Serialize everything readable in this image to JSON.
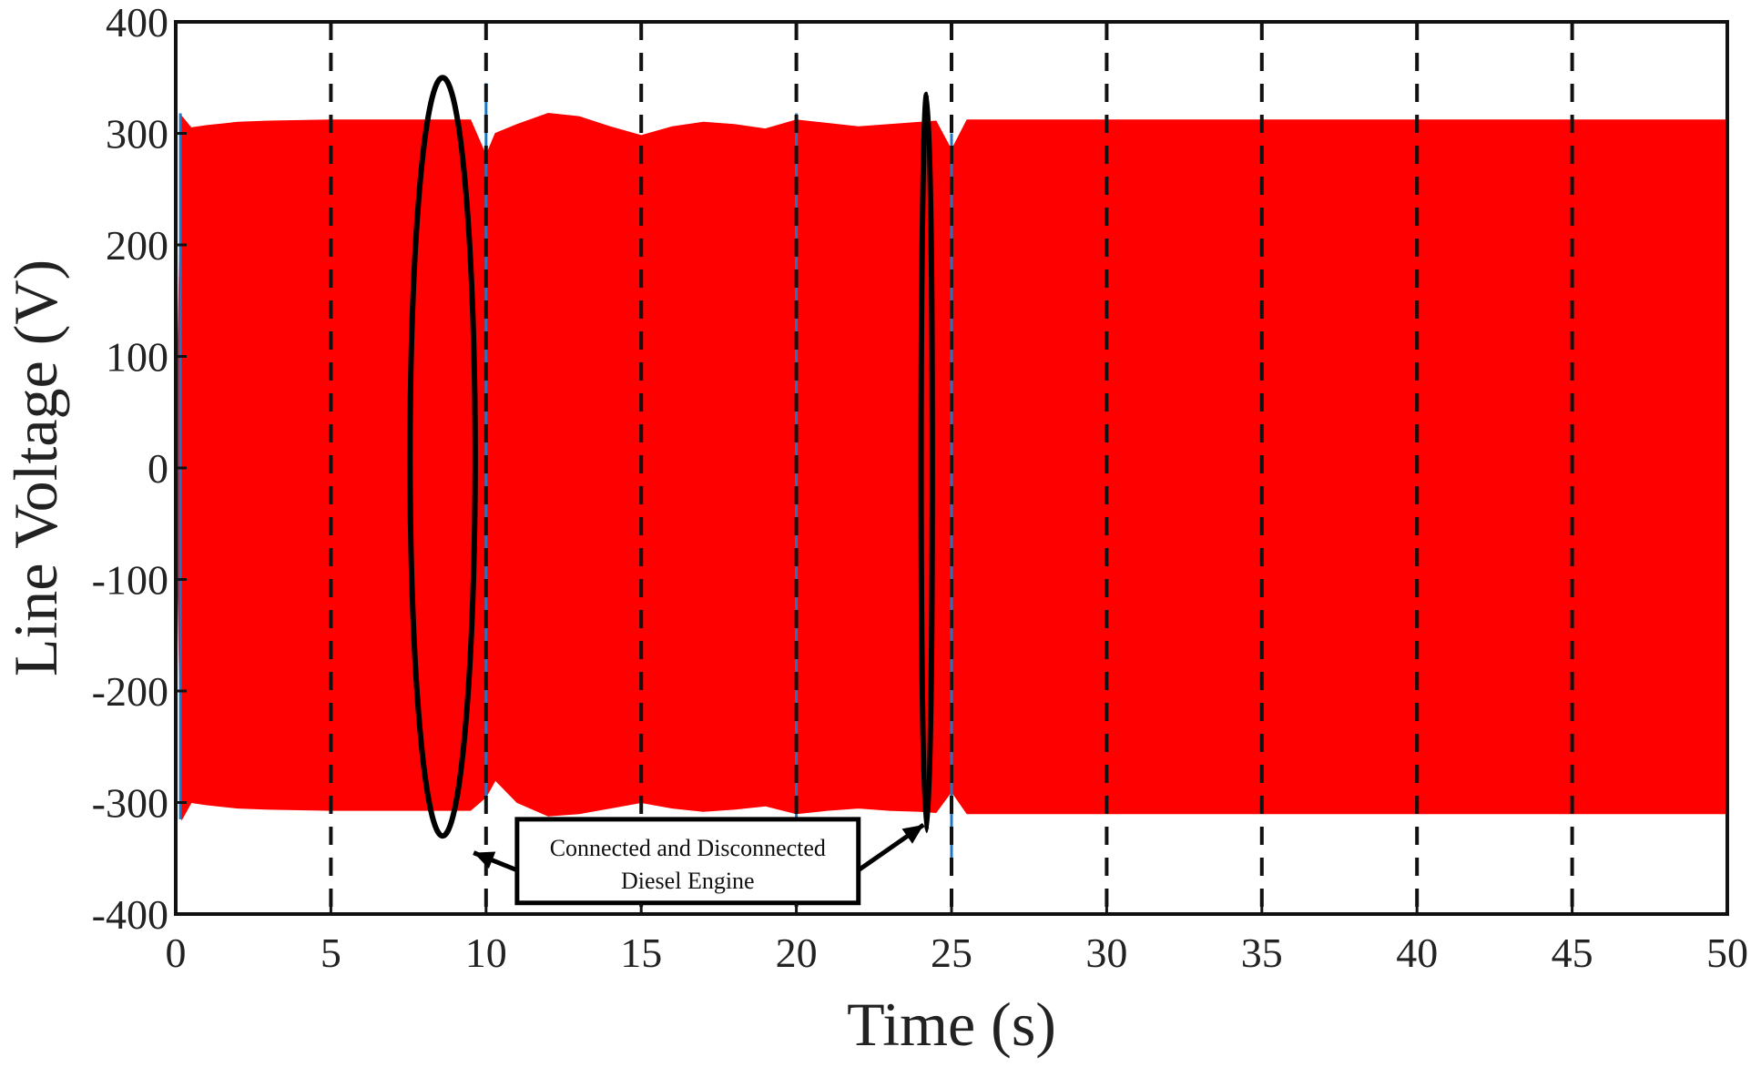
{
  "chart_data": {
    "type": "area",
    "title": "",
    "xlabel": "Time (s)",
    "ylabel": "Line Voltage (V)",
    "xlim": [
      0,
      50
    ],
    "ylim": [
      -400,
      400
    ],
    "xticks": [
      0,
      5,
      10,
      15,
      20,
      25,
      30,
      35,
      40,
      45,
      50
    ],
    "yticks": [
      -400,
      -300,
      -200,
      -100,
      0,
      100,
      200,
      300,
      400
    ],
    "xtick_labels": [
      "0",
      "5",
      "10",
      "15",
      "20",
      "25",
      "30",
      "35",
      "40",
      "45",
      "50"
    ],
    "ytick_labels": [
      "-400",
      "-300",
      "-200",
      "-100",
      "0",
      "100",
      "200",
      "300",
      "400"
    ],
    "grid": "vertical dashed",
    "series": [
      {
        "color": "#ff0000",
        "envelope_x": [
          0,
          0.2,
          0.5,
          1,
          2,
          3,
          5,
          8,
          9.5,
          10,
          10.3,
          11,
          12,
          13,
          14,
          15,
          16,
          17,
          18,
          19,
          20,
          21,
          22,
          23,
          24,
          24.5,
          25,
          25.5,
          26,
          30,
          35,
          40,
          45,
          50
        ],
        "envelope_upper": [
          0,
          315,
          305,
          307,
          310,
          311,
          312,
          312,
          312,
          280,
          300,
          308,
          318,
          315,
          306,
          298,
          306,
          310,
          308,
          304,
          312,
          309,
          306,
          308,
          310,
          311,
          285,
          312,
          312,
          312,
          312,
          312,
          312,
          312
        ],
        "envelope_lower": [
          0,
          -315,
          -300,
          -302,
          -305,
          -306,
          -307,
          -307,
          -307,
          -295,
          -280,
          -300,
          -312,
          -310,
          -305,
          -300,
          -305,
          -308,
          -306,
          -303,
          -310,
          -307,
          -305,
          -307,
          -308,
          -309,
          -290,
          -310,
          -310,
          -310,
          -310,
          -310,
          -310,
          -310
        ]
      }
    ],
    "annotations": [
      {
        "text_lines": [
          "Connected and Disconnected",
          "Diesel Engine"
        ],
        "ellipses": [
          {
            "cx": 8.6,
            "cy": 10,
            "rx": 1.05,
            "ry": 340
          },
          {
            "cx": 24.2,
            "cy": 5,
            "rx": 0.18,
            "ry": 330
          }
        ],
        "arrow_targets": [
          {
            "x": 9.6,
            "y": -345
          },
          {
            "x": 24.1,
            "y": -320
          }
        ],
        "box": {
          "x_from": 11,
          "x_to": 22,
          "y_top": -315,
          "y_bottom": -390
        }
      }
    ]
  }
}
